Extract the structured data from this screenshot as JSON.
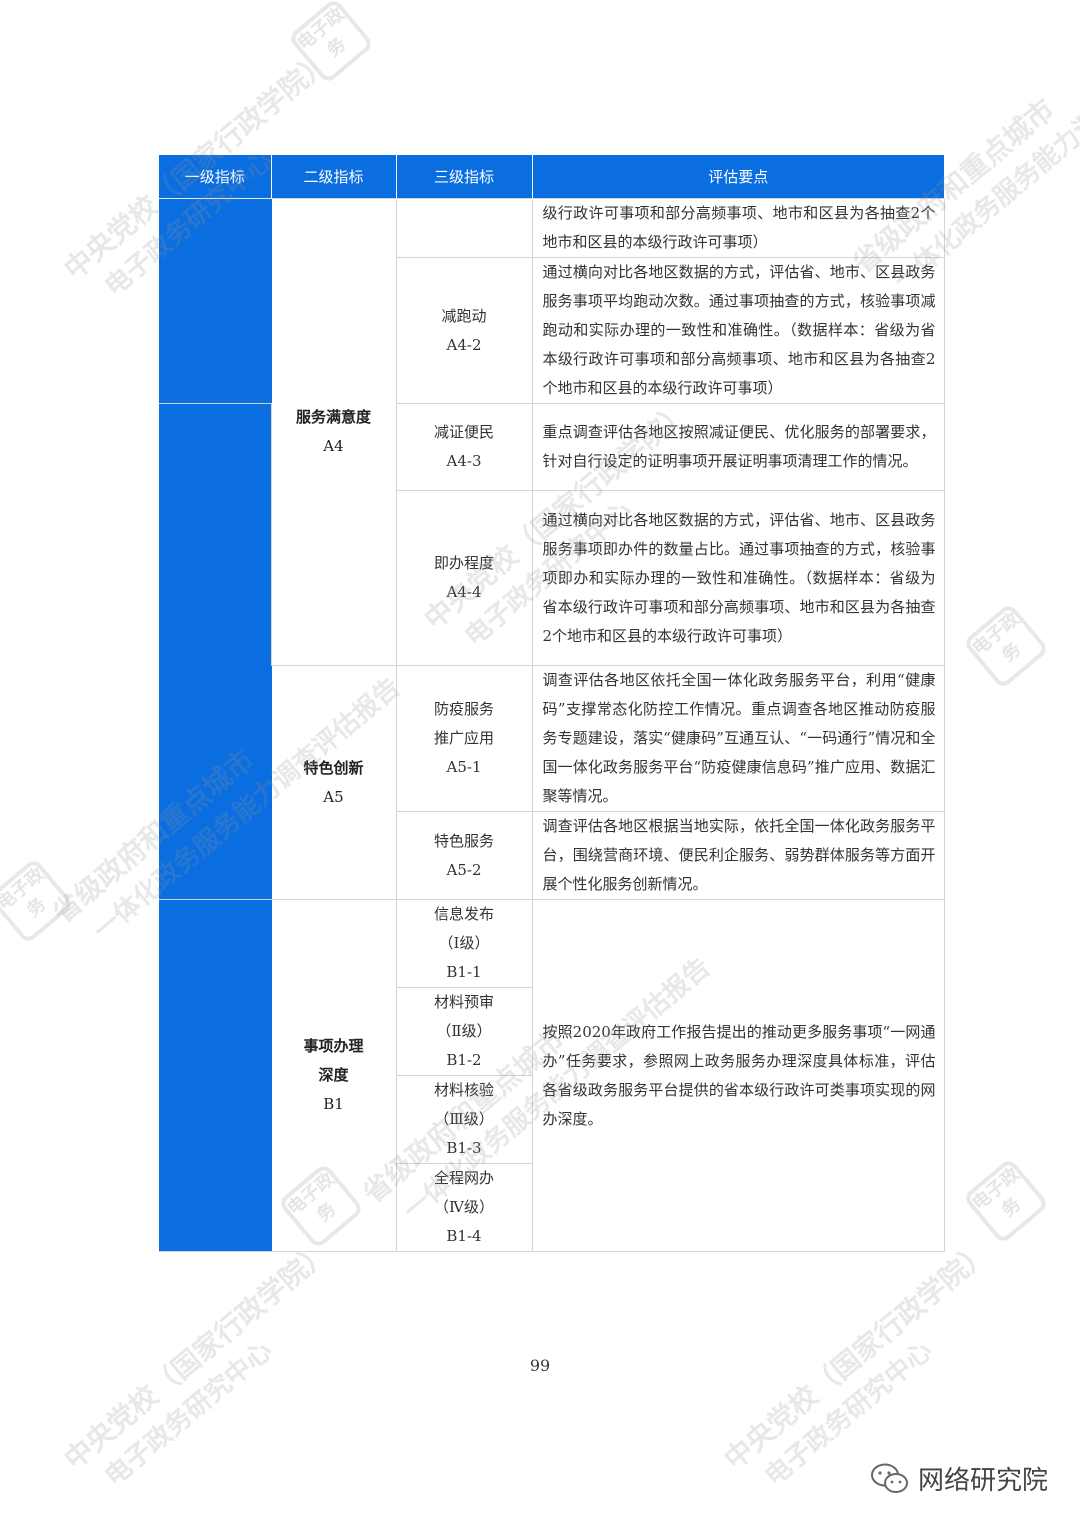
{
  "table": {
    "headers": [
      "一级指标",
      "二级指标",
      "三级指标",
      "评估要点"
    ],
    "a4": {
      "name": "服务满意度",
      "code": "A4",
      "row_cont": "级行政许可事项和部分高频事项、地市和区县为各抽查2个地市和区县的本级行政许可事项）",
      "a4_2": {
        "name": "减跑动",
        "code": "A4-2",
        "desc": "通过横向对比各地区数据的方式，评估省、地市、区县政务服务事项平均跑动次数。通过事项抽查的方式，核验事项减跑动和实际办理的一致性和准确性。（数据样本：省级为省本级行政许可事项和部分高频事项、地市和区县为各抽查2个地市和区县的本级行政许可事项）"
      },
      "a4_3": {
        "name": "减证便民",
        "code": "A4-3",
        "desc": "重点调查评估各地区按照减证便民、优化服务的部署要求，针对自行设定的证明事项开展证明事项清理工作的情况。"
      },
      "a4_4": {
        "name": "即办程度",
        "code": "A4-4",
        "desc": "通过横向对比各地区数据的方式，评估省、地市、区县政务服务事项即办件的数量占比。通过事项抽查的方式，核验事项即办和实际办理的一致性和准确性。（数据样本：省级为省本级行政许可事项和部分高频事项、地市和区县为各抽查2个地市和区县的本级行政许可事项）"
      }
    },
    "a5": {
      "name": "特色创新",
      "code": "A5",
      "a5_1": {
        "name_line1": "防疫服务",
        "name_line2": "推广应用",
        "code": "A5-1",
        "desc": "调查评估各地区依托全国一体化政务服务平台，利用“健康码”支撑常态化防控工作情况。重点调查各地区推动防疫服务专题建设，落实“健康码”互通互认、“一码通行”情况和全国一体化政务服务平台“防疫健康信息码”推广应用、数据汇聚等情况。"
      },
      "a5_2": {
        "name": "特色服务",
        "code": "A5-2",
        "desc": "调查评估各地区根据当地实际，依托全国一体化政务服务平台，围绕营商环境、便民利企服务、弱势群体服务等方面开展个性化服务创新情况。"
      }
    },
    "b1": {
      "name_line1": "事项办理",
      "name_line2": "深度",
      "code": "B1",
      "b1_1": {
        "name": "信息发布",
        "level": "（Ⅰ级）",
        "code": "B1-1"
      },
      "b1_2": {
        "name": "材料预审",
        "level": "（Ⅱ级）",
        "code": "B1-2"
      },
      "b1_3": {
        "name": "材料核验",
        "level": "（Ⅲ级）",
        "code": "B1-3"
      },
      "b1_4": {
        "name": "全程网办",
        "level": "（Ⅳ级）",
        "code": "B1-4"
      },
      "desc": "按照2020年政府工作报告提出的推动更多服务事项“一网通办”任务要求，参照网上政务服务办理深度具体标准，评估各省级政务服务平台提供的省本级行政许可类事项实现的网办深度。"
    }
  },
  "page_number": "99",
  "watermark": {
    "school_line1": "中央党校（国家行政学院）",
    "school_line2": "电子政务研究中心",
    "report_line1": "省级政府和重点城市",
    "report_line2": "一体化政务服务能力调查评估报告",
    "seal_text": "电子政务"
  },
  "brand": {
    "text": "网络研究院",
    "icon": "wechat-icon"
  }
}
